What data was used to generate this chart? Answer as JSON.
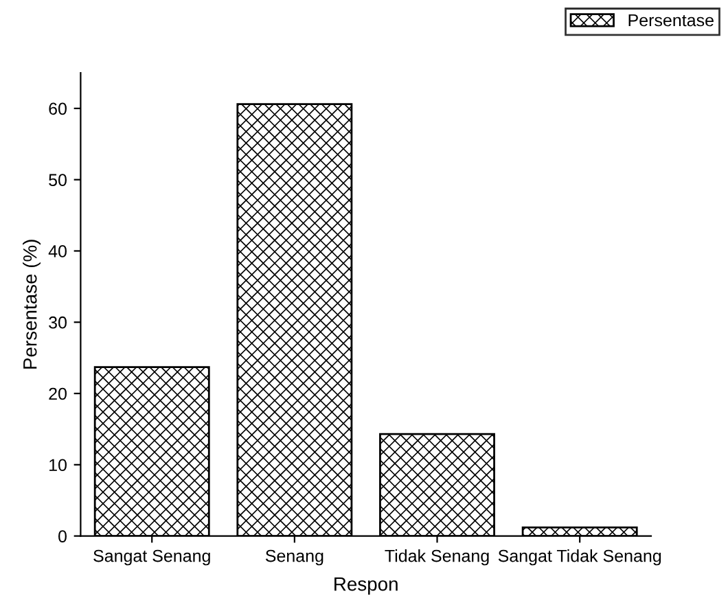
{
  "chart_data": {
    "type": "bar",
    "xlabel": "Respon",
    "ylabel": "Persentase (%)",
    "categories": [
      "Sangat Senang",
      "Senang",
      "Tidak Senang",
      "Sangat Tidak Senang"
    ],
    "series": [
      {
        "name": "Persentase",
        "color": "#000000",
        "values": [
          23.7,
          60.6,
          14.3,
          1.2
        ]
      }
    ],
    "ylim": [
      0,
      65
    ],
    "yticks": [
      0,
      10,
      20,
      30,
      40,
      50,
      60
    ],
    "grid": false,
    "legend": "top right"
  }
}
